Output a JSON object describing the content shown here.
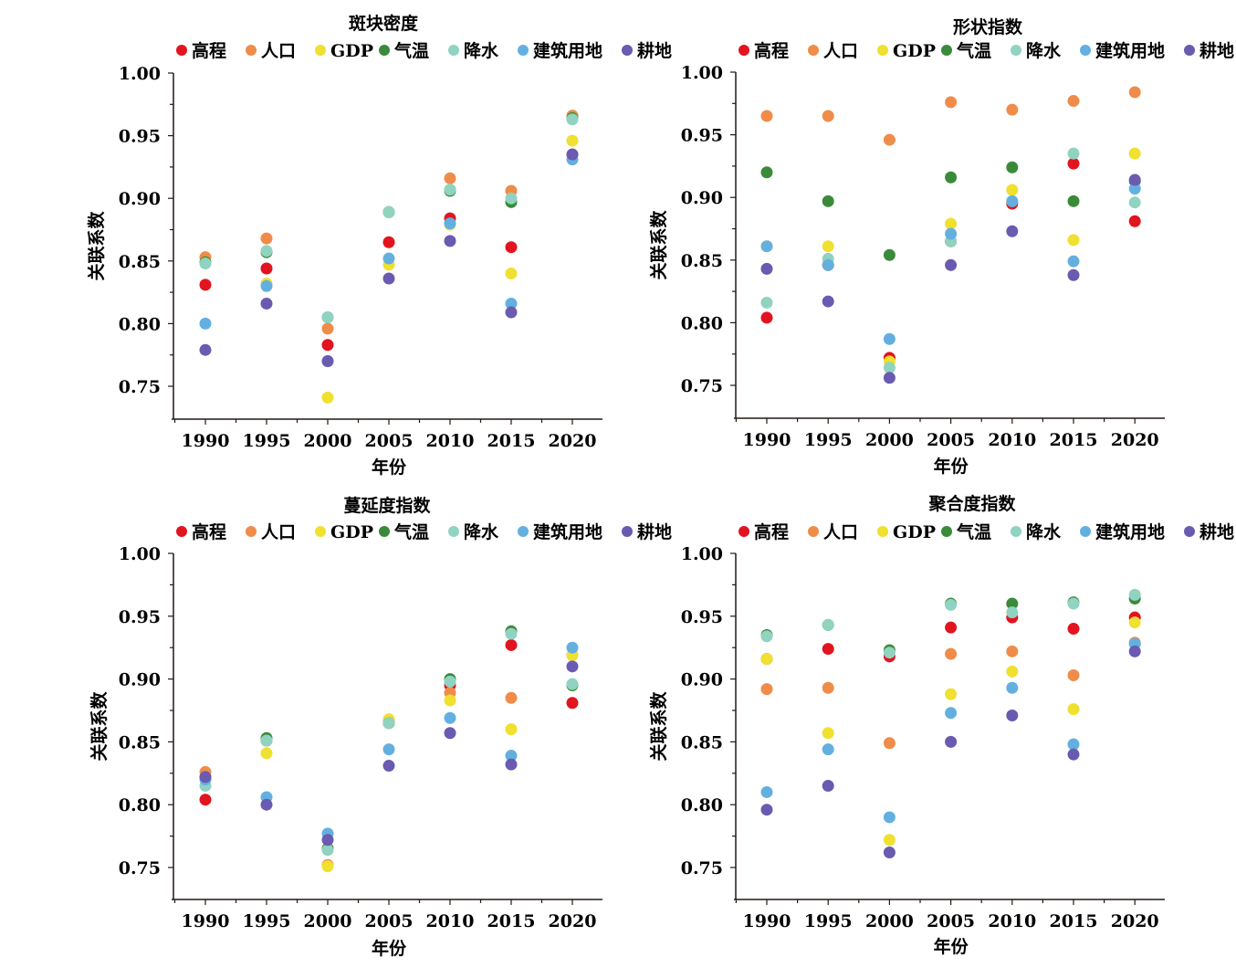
{
  "series_meta": [
    {
      "key": "elevation",
      "name": "高程",
      "color": "#e2141f"
    },
    {
      "key": "population",
      "name": "人口",
      "color": "#f08c4a"
    },
    {
      "key": "gdp",
      "name": "GDP",
      "color": "#f0e030"
    },
    {
      "key": "temperature",
      "name": "气温",
      "color": "#3a8a3a"
    },
    {
      "key": "precipitation",
      "name": "降水",
      "color": "#8fd3c0"
    },
    {
      "key": "construction_land",
      "name": "建筑用地",
      "color": "#63b0e0"
    },
    {
      "key": "cropland",
      "name": "耕地",
      "color": "#6a5ab0"
    }
  ],
  "chart_data": [
    {
      "type": "scatter",
      "title": "斑块密度",
      "xlabel": "年份",
      "ylabel": "关联系数",
      "categories": [
        "1990",
        "1995",
        "2000",
        "2005",
        "2010",
        "2015",
        "2020"
      ],
      "yticks": [
        "1.00",
        "0.95",
        "0.90",
        "0.85",
        "0.80",
        "0.75"
      ],
      "ylim": [
        0.724,
        1.0
      ],
      "grid": false,
      "legend": "top",
      "series": [
        {
          "name": "高程",
          "values": [
            0.831,
            0.844,
            0.783,
            0.865,
            0.884,
            0.861,
            0.935
          ]
        },
        {
          "name": "人口",
          "values": [
            0.853,
            0.868,
            0.796,
            0.889,
            0.916,
            0.906,
            0.966
          ]
        },
        {
          "name": "GDP",
          "values": [
            0.849,
            0.832,
            0.741,
            0.847,
            0.879,
            0.84,
            0.946
          ]
        },
        {
          "name": "气温",
          "values": [
            0.849,
            0.857,
            0.805,
            0.889,
            0.906,
            0.897,
            0.964
          ]
        },
        {
          "name": "降水",
          "values": [
            0.848,
            0.858,
            0.805,
            0.889,
            0.907,
            0.9,
            0.963
          ]
        },
        {
          "name": "建筑用地",
          "values": [
            0.8,
            0.83,
            0.77,
            0.852,
            0.88,
            0.816,
            0.931
          ]
        },
        {
          "name": "耕地",
          "values": [
            0.779,
            0.816,
            0.77,
            0.836,
            0.866,
            0.809,
            0.935
          ]
        }
      ]
    },
    {
      "type": "scatter",
      "title": "形状指数",
      "xlabel": "年份",
      "ylabel": "关联系数",
      "categories": [
        "1990",
        "1995",
        "2000",
        "2005",
        "2010",
        "2015",
        "2020"
      ],
      "yticks": [
        "1.00",
        "0.95",
        "0.90",
        "0.85",
        "0.80",
        "0.75"
      ],
      "ylim": [
        0.724,
        1.0
      ],
      "grid": false,
      "legend": "top",
      "series": [
        {
          "name": "高程",
          "values": [
            0.804,
            0.846,
            0.772,
            0.865,
            0.895,
            0.927,
            0.881
          ]
        },
        {
          "name": "人口",
          "values": [
            0.965,
            0.965,
            0.946,
            0.976,
            0.97,
            0.977,
            0.984
          ]
        },
        {
          "name": "GDP",
          "values": [
            0.861,
            0.861,
            0.769,
            0.879,
            0.906,
            0.866,
            0.935
          ]
        },
        {
          "name": "气温",
          "values": [
            0.92,
            0.897,
            0.854,
            0.916,
            0.924,
            0.897,
            0.913
          ]
        },
        {
          "name": "降水",
          "values": [
            0.816,
            0.851,
            0.764,
            0.865,
            0.897,
            0.935,
            0.896
          ]
        },
        {
          "name": "建筑用地",
          "values": [
            0.861,
            0.846,
            0.787,
            0.871,
            0.897,
            0.849,
            0.907
          ]
        },
        {
          "name": "耕地",
          "values": [
            0.843,
            0.817,
            0.756,
            0.846,
            0.873,
            0.838,
            0.914
          ]
        }
      ]
    },
    {
      "type": "scatter",
      "title": "蔓延度指数",
      "xlabel": "年份",
      "ylabel": "关联系数",
      "categories": [
        "1990",
        "1995",
        "2000",
        "2005",
        "2010",
        "2015",
        "2020"
      ],
      "yticks": [
        "1.00",
        "0.95",
        "0.90",
        "0.85",
        "0.80",
        "0.75"
      ],
      "ylim": [
        0.724,
        1.0
      ],
      "grid": false,
      "legend": "top",
      "series": [
        {
          "name": "高程",
          "values": [
            0.804,
            0.851,
            0.765,
            0.865,
            0.895,
            0.927,
            0.881
          ]
        },
        {
          "name": "人口",
          "values": [
            0.826,
            0.851,
            0.752,
            0.866,
            0.889,
            0.885,
            0.919
          ]
        },
        {
          "name": "GDP",
          "values": [
            0.822,
            0.841,
            0.751,
            0.868,
            0.883,
            0.86,
            0.919
          ]
        },
        {
          "name": "气温",
          "values": [
            0.822,
            0.853,
            0.765,
            0.865,
            0.9,
            0.938,
            0.895
          ]
        },
        {
          "name": "降水",
          "values": [
            0.815,
            0.851,
            0.764,
            0.865,
            0.898,
            0.936,
            0.896
          ]
        },
        {
          "name": "建筑用地",
          "values": [
            0.82,
            0.806,
            0.777,
            0.844,
            0.869,
            0.839,
            0.925
          ]
        },
        {
          "name": "耕地",
          "values": [
            0.822,
            0.8,
            0.772,
            0.831,
            0.857,
            0.832,
            0.91
          ]
        }
      ]
    },
    {
      "type": "scatter",
      "title": "聚合度指数",
      "xlabel": "年份",
      "ylabel": "关联系数",
      "categories": [
        "1990",
        "1995",
        "2000",
        "2005",
        "2010",
        "2015",
        "2020"
      ],
      "yticks": [
        "1.00",
        "0.95",
        "0.90",
        "0.85",
        "0.80",
        "0.75"
      ],
      "ylim": [
        0.724,
        1.0
      ],
      "grid": false,
      "legend": "top",
      "series": [
        {
          "name": "高程",
          "values": [
            0.916,
            0.924,
            0.918,
            0.941,
            0.949,
            0.94,
            0.949
          ]
        },
        {
          "name": "人口",
          "values": [
            0.892,
            0.893,
            0.849,
            0.92,
            0.922,
            0.903,
            0.929
          ]
        },
        {
          "name": "GDP",
          "values": [
            0.916,
            0.857,
            0.772,
            0.888,
            0.906,
            0.876,
            0.945
          ]
        },
        {
          "name": "气温",
          "values": [
            0.935,
            0.943,
            0.923,
            0.96,
            0.96,
            0.961,
            0.964
          ]
        },
        {
          "name": "降水",
          "values": [
            0.934,
            0.943,
            0.921,
            0.959,
            0.953,
            0.96,
            0.967
          ]
        },
        {
          "name": "建筑用地",
          "values": [
            0.81,
            0.844,
            0.79,
            0.873,
            0.893,
            0.848,
            0.928
          ]
        },
        {
          "name": "耕地",
          "values": [
            0.796,
            0.815,
            0.762,
            0.85,
            0.871,
            0.84,
            0.922
          ]
        }
      ]
    }
  ]
}
